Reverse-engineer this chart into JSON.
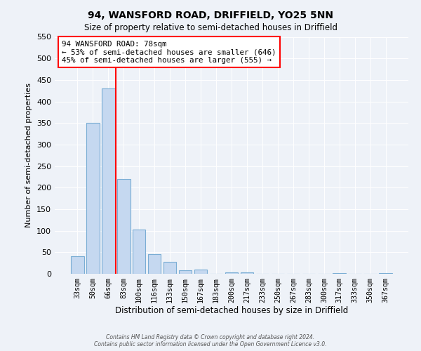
{
  "title": "94, WANSFORD ROAD, DRIFFIELD, YO25 5NN",
  "subtitle": "Size of property relative to semi-detached houses in Driffield",
  "xlabel": "Distribution of semi-detached houses by size in Driffield",
  "ylabel": "Number of semi-detached properties",
  "categories": [
    "33sqm",
    "50sqm",
    "66sqm",
    "83sqm",
    "100sqm",
    "116sqm",
    "133sqm",
    "150sqm",
    "167sqm",
    "183sqm",
    "200sqm",
    "217sqm",
    "233sqm",
    "250sqm",
    "267sqm",
    "283sqm",
    "300sqm",
    "317sqm",
    "333sqm",
    "350sqm",
    "367sqm"
  ],
  "values": [
    40,
    350,
    430,
    220,
    103,
    45,
    27,
    8,
    10,
    0,
    4,
    3,
    0,
    0,
    0,
    0,
    0,
    1,
    0,
    0,
    2
  ],
  "bar_color": "#c5d8f0",
  "bar_edge_color": "#7aadd4",
  "vline_color": "red",
  "vline_x_idx": 3,
  "property_label": "94 WANSFORD ROAD: 78sqm",
  "annotation_line1": "← 53% of semi-detached houses are smaller (646)",
  "annotation_line2": "45% of semi-detached houses are larger (555) →",
  "annotation_box_color": "white",
  "annotation_box_edge": "red",
  "ylim": [
    0,
    550
  ],
  "yticks": [
    0,
    50,
    100,
    150,
    200,
    250,
    300,
    350,
    400,
    450,
    500,
    550
  ],
  "footer1": "Contains HM Land Registry data © Crown copyright and database right 2024.",
  "footer2": "Contains public sector information licensed under the Open Government Licence v3.0.",
  "bg_color": "#eef2f8",
  "plot_bg_color": "#eef2f8"
}
